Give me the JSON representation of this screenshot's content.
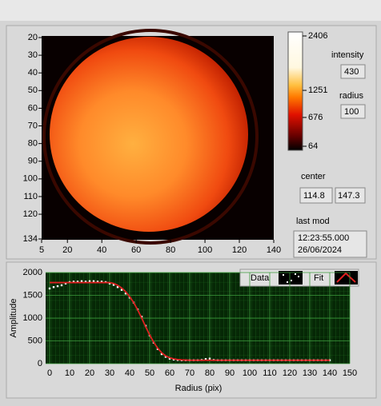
{
  "chart_data": [
    {
      "type": "heatmap",
      "xlim": [
        5,
        140
      ],
      "xticks": [
        5,
        20,
        40,
        60,
        80,
        100,
        120,
        140
      ],
      "ylim": [
        20,
        134
      ],
      "yticks": [
        20,
        30,
        40,
        50,
        60,
        70,
        80,
        90,
        100,
        110,
        120,
        134
      ],
      "clim": [
        64,
        2406
      ],
      "cticks": [
        2406,
        1251,
        676,
        64
      ]
    },
    {
      "type": "line",
      "xlabel": "Radius (pix)",
      "ylabel": "Amplitude",
      "xlim": [
        -2,
        150
      ],
      "xticks": [
        0,
        10,
        20,
        30,
        40,
        50,
        60,
        70,
        80,
        90,
        100,
        110,
        120,
        130,
        140,
        150
      ],
      "ylim": [
        0,
        2000
      ],
      "yticks": [
        0,
        500,
        1000,
        1500,
        2000
      ],
      "grid": true,
      "x": [
        0,
        2,
        4,
        6,
        8,
        10,
        12,
        14,
        16,
        18,
        20,
        22,
        24,
        26,
        28,
        30,
        32,
        34,
        36,
        38,
        40,
        42,
        44,
        46,
        48,
        50,
        52,
        54,
        56,
        58,
        60,
        62,
        64,
        66,
        68,
        70,
        72,
        74,
        76,
        78,
        80,
        82,
        84,
        86,
        88,
        90,
        92,
        94,
        96,
        98,
        100,
        102,
        104,
        106,
        108,
        110,
        112,
        114,
        116,
        118,
        120,
        122,
        124,
        126,
        128,
        130,
        132,
        134,
        136,
        138,
        140
      ],
      "series": [
        {
          "name": "Data",
          "color": "#ffffff",
          "style": "points",
          "values": [
            1650,
            1680,
            1700,
            1720,
            1760,
            1790,
            1800,
            1800,
            1810,
            1800,
            1810,
            1810,
            1800,
            1800,
            1790,
            1760,
            1730,
            1680,
            1620,
            1540,
            1450,
            1340,
            1190,
            1030,
            830,
            620,
            460,
            320,
            210,
            150,
            110,
            90,
            80,
            75,
            75,
            75,
            75,
            75,
            80,
            100,
            110,
            80,
            75,
            75,
            75,
            75,
            75,
            75,
            75,
            75,
            75,
            75,
            75,
            75,
            75,
            75,
            75,
            75,
            75,
            75,
            75,
            75,
            75,
            75,
            75,
            75,
            75,
            75,
            75,
            75,
            75
          ]
        },
        {
          "name": "Fit",
          "color": "#e02020",
          "style": "line",
          "values": [
            1780,
            1780,
            1780,
            1780,
            1780,
            1780,
            1780,
            1780,
            1780,
            1780,
            1780,
            1780,
            1780,
            1780,
            1780,
            1780,
            1760,
            1720,
            1660,
            1580,
            1470,
            1340,
            1180,
            1000,
            810,
            630,
            470,
            340,
            240,
            170,
            130,
            105,
            90,
            82,
            78,
            75,
            75,
            75,
            75,
            75,
            75,
            75,
            75,
            75,
            75,
            75,
            75,
            75,
            75,
            75,
            75,
            75,
            75,
            75,
            75,
            75,
            75,
            75,
            75,
            75,
            75,
            75,
            75,
            75,
            75,
            75,
            75,
            75,
            75,
            75,
            75
          ]
        }
      ]
    }
  ],
  "controls": {
    "intensity_label": "intensity",
    "intensity": 430,
    "radius_label": "radius",
    "radius": 100,
    "center_label": "center",
    "center": [
      114.8,
      147.3
    ],
    "last_mod_label": "last mod",
    "last_mod_time": "12:23:55.000",
    "last_mod_date": "26/06/2024"
  }
}
